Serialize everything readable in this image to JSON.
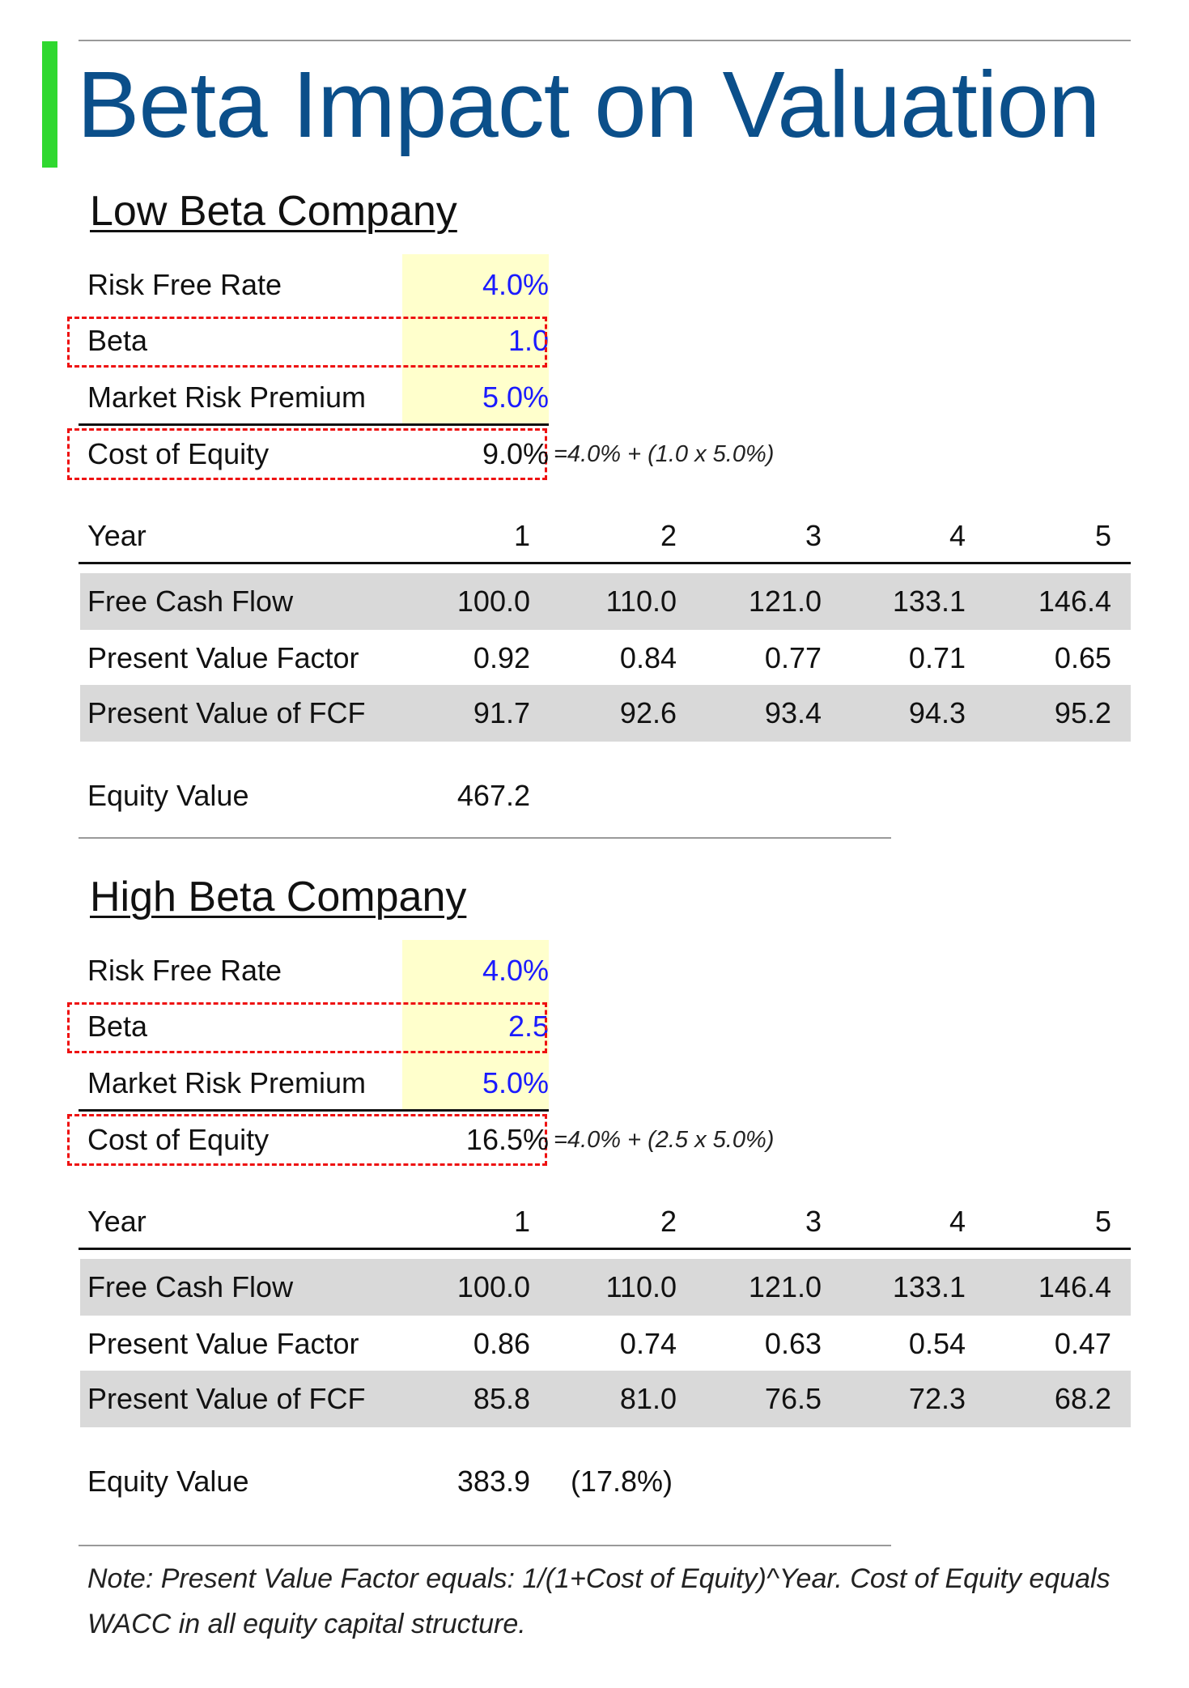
{
  "title": "Beta Impact on Valuation",
  "colors": {
    "title": "#0b4f8a",
    "accent_bar": "#2fd82f",
    "input_fill": "#ffffcc",
    "input_text": "#1a1aff",
    "highlight_box": "#ee1111",
    "row_band": "#d9d9d9"
  },
  "low": {
    "heading": "Low Beta Company",
    "inputs": [
      {
        "label": "Risk Free Rate",
        "value": "4.0%"
      },
      {
        "label": "Beta",
        "value": "1.0"
      },
      {
        "label": "Market Risk Premium",
        "value": "5.0%"
      }
    ],
    "cost_of_equity": {
      "label": "Cost of Equity",
      "value": "9.0%",
      "formula": "=4.0% + (1.0 x 5.0%)"
    },
    "table": {
      "year_label": "Year",
      "years": [
        "1",
        "2",
        "3",
        "4",
        "5"
      ],
      "rows": [
        {
          "label": "Free Cash Flow",
          "values": [
            "100.0",
            "110.0",
            "121.0",
            "133.1",
            "146.4"
          ]
        },
        {
          "label": "Present Value Factor",
          "values": [
            "0.92",
            "0.84",
            "0.77",
            "0.71",
            "0.65"
          ]
        },
        {
          "label": "Present Value of FCF",
          "values": [
            "91.7",
            "92.6",
            "93.4",
            "94.3",
            "95.2"
          ]
        }
      ]
    },
    "equity_value": {
      "label": "Equity Value",
      "value": "467.2",
      "change": ""
    }
  },
  "high": {
    "heading": "High Beta Company",
    "inputs": [
      {
        "label": "Risk Free Rate",
        "value": "4.0%"
      },
      {
        "label": "Beta",
        "value": "2.5"
      },
      {
        "label": "Market Risk Premium",
        "value": "5.0%"
      }
    ],
    "cost_of_equity": {
      "label": "Cost of Equity",
      "value": "16.5%",
      "formula": "=4.0% + (2.5 x 5.0%)"
    },
    "table": {
      "year_label": "Year",
      "years": [
        "1",
        "2",
        "3",
        "4",
        "5"
      ],
      "rows": [
        {
          "label": "Free Cash Flow",
          "values": [
            "100.0",
            "110.0",
            "121.0",
            "133.1",
            "146.4"
          ]
        },
        {
          "label": "Present Value Factor",
          "values": [
            "0.86",
            "0.74",
            "0.63",
            "0.54",
            "0.47"
          ]
        },
        {
          "label": "Present Value of FCF",
          "values": [
            "85.8",
            "81.0",
            "76.5",
            "72.3",
            "68.2"
          ]
        }
      ]
    },
    "equity_value": {
      "label": "Equity Value",
      "value": "383.9",
      "change": "(17.8%)"
    }
  },
  "note": "Note: Present Value Factor equals: 1/(1+Cost of Equity)^Year. Cost of Equity equals WACC in all equity capital structure."
}
